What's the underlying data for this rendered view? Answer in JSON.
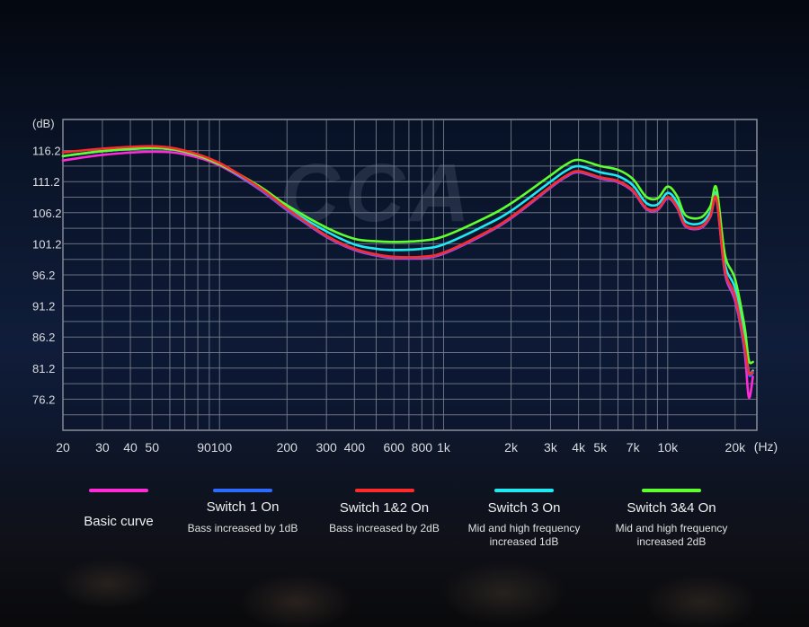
{
  "chart_data": {
    "type": "line",
    "y_unit": "(dB)",
    "x_unit": "(Hz)",
    "xscale": "log",
    "xlim": [
      20,
      25000
    ],
    "ylim": [
      71.2,
      121.2
    ],
    "y_ticks": [
      116.2,
      111.2,
      106.2,
      101.2,
      96.2,
      91.2,
      86.2,
      81.2,
      76.2
    ],
    "y_tick_labels": [
      "116.2",
      "111.2",
      "106.2",
      "101.2",
      "96.2",
      "91.2",
      "86.2",
      "81.2",
      "76.2"
    ],
    "x_tick_labels": [
      {
        "v": 20,
        "t": "20"
      },
      {
        "v": 30,
        "t": "30"
      },
      {
        "v": 40,
        "t": "40"
      },
      {
        "v": 50,
        "t": "50"
      },
      {
        "v": 95,
        "t": "90100"
      },
      {
        "v": 200,
        "t": "200"
      },
      {
        "v": 300,
        "t": "300"
      },
      {
        "v": 400,
        "t": "400"
      },
      {
        "v": 600,
        "t": "600"
      },
      {
        "v": 800,
        "t": "800"
      },
      {
        "v": 1000,
        "t": "1k"
      },
      {
        "v": 2000,
        "t": "2k"
      },
      {
        "v": 3000,
        "t": "3k"
      },
      {
        "v": 4000,
        "t": "4k"
      },
      {
        "v": 5000,
        "t": "5k"
      },
      {
        "v": 7000,
        "t": "7k"
      },
      {
        "v": 10000,
        "t": "10k"
      },
      {
        "v": 20000,
        "t": "20k"
      }
    ],
    "grid_x": [
      20,
      30,
      40,
      50,
      60,
      70,
      80,
      90,
      100,
      200,
      300,
      400,
      500,
      600,
      700,
      800,
      900,
      1000,
      2000,
      3000,
      4000,
      5000,
      6000,
      7000,
      8000,
      9000,
      10000,
      20000
    ],
    "grid": true,
    "watermark": "CCA",
    "series": [
      {
        "name": "Basic curve",
        "color": "#ff2bd6",
        "x": [
          20,
          30,
          50,
          70,
          100,
          150,
          200,
          300,
          400,
          500,
          600,
          800,
          1000,
          1500,
          2000,
          3000,
          3500,
          4000,
          5000,
          6000,
          7000,
          8000,
          9000,
          10000,
          11000,
          12000,
          14000,
          15500,
          16500,
          18000,
          20000,
          22000,
          23000,
          24000
        ],
        "y": [
          114.6,
          115.5,
          116.0,
          115.6,
          113.8,
          110.0,
          106.6,
          102.3,
          100.2,
          99.3,
          98.9,
          98.9,
          99.6,
          102.6,
          105.3,
          110.2,
          111.9,
          112.7,
          111.7,
          111.1,
          109.6,
          106.8,
          106.6,
          108.5,
          107.0,
          104.0,
          103.7,
          105.5,
          108.3,
          96.5,
          92.0,
          84.0,
          76.5,
          79.8
        ]
      },
      {
        "name": "Switch 1 On",
        "color": "#2b6bff",
        "x": [
          20,
          30,
          50,
          70,
          100,
          150,
          200,
          300,
          400,
          500,
          600,
          800,
          1000,
          1500,
          2000,
          3000,
          3500,
          4000,
          5000,
          6000,
          7000,
          8000,
          9000,
          10000,
          11000,
          12000,
          14000,
          15500,
          16500,
          18000,
          20000,
          22000,
          23000,
          24000
        ],
        "y": [
          115.3,
          116.1,
          116.6,
          116.0,
          114.0,
          110.1,
          106.7,
          102.4,
          100.3,
          99.4,
          99.0,
          99.0,
          99.7,
          102.7,
          105.4,
          110.3,
          112.0,
          112.8,
          111.8,
          111.2,
          109.7,
          106.9,
          106.7,
          108.6,
          107.1,
          104.1,
          103.8,
          105.6,
          108.4,
          96.8,
          92.5,
          84.5,
          80.2,
          80.4
        ]
      },
      {
        "name": "Switch 1&2 On",
        "color": "#ff2b2b",
        "x": [
          20,
          30,
          50,
          70,
          100,
          150,
          200,
          300,
          400,
          500,
          600,
          800,
          1000,
          1500,
          2000,
          3000,
          3500,
          4000,
          5000,
          6000,
          7000,
          8000,
          9000,
          10000,
          11000,
          12000,
          14000,
          15500,
          16500,
          18000,
          20000,
          22000,
          23000,
          24000
        ],
        "y": [
          115.9,
          116.5,
          116.9,
          116.2,
          114.2,
          110.3,
          106.9,
          102.5,
          100.4,
          99.5,
          99.1,
          99.1,
          99.8,
          102.8,
          105.5,
          110.4,
          112.1,
          112.9,
          111.9,
          111.3,
          109.8,
          107.0,
          106.8,
          108.7,
          107.2,
          104.2,
          103.9,
          105.7,
          108.5,
          97.0,
          92.8,
          85.0,
          80.5,
          80.6
        ]
      },
      {
        "name": "Switch 3 On",
        "color": "#1fe9f2",
        "x": [
          20,
          30,
          50,
          70,
          100,
          150,
          200,
          300,
          400,
          500,
          600,
          800,
          1000,
          1500,
          2000,
          3000,
          3500,
          4000,
          5000,
          6000,
          7000,
          8000,
          9000,
          10000,
          11000,
          12000,
          14000,
          15500,
          16500,
          18000,
          20000,
          22000,
          23000,
          24000
        ],
        "y": [
          115.3,
          116.1,
          116.6,
          116.0,
          114.0,
          110.3,
          107.0,
          103.2,
          101.1,
          100.4,
          100.2,
          100.4,
          101.1,
          104.0,
          106.5,
          111.2,
          112.9,
          113.7,
          112.7,
          112.1,
          110.6,
          107.8,
          107.5,
          109.4,
          107.9,
          104.8,
          104.5,
          106.3,
          109.2,
          98.0,
          94.0,
          86.0,
          80.6,
          80.8
        ]
      },
      {
        "name": "Switch 3&4 On",
        "color": "#5dff2e",
        "x": [
          20,
          30,
          50,
          70,
          100,
          150,
          200,
          300,
          400,
          500,
          600,
          800,
          1000,
          1500,
          2000,
          3000,
          3500,
          4000,
          5000,
          6000,
          7000,
          8000,
          9000,
          10000,
          11000,
          12000,
          14000,
          15500,
          16500,
          18000,
          20000,
          22000,
          23000,
          24000
        ],
        "y": [
          115.3,
          116.1,
          116.6,
          116.0,
          114.0,
          110.5,
          107.4,
          103.8,
          102.0,
          101.6,
          101.5,
          101.7,
          102.4,
          105.2,
          107.7,
          112.2,
          113.9,
          114.7,
          113.7,
          113.1,
          111.6,
          108.8,
          108.5,
          110.4,
          108.9,
          105.8,
          105.4,
          107.2,
          110.2,
          99.5,
          95.5,
          88.0,
          82.5,
          82.2
        ]
      }
    ]
  },
  "legend": [
    {
      "color": "#ff2bd6",
      "title": "Basic curve",
      "desc": ""
    },
    {
      "color": "#2b6bff",
      "title": "Switch 1 On",
      "desc": "Bass increased by 1dB"
    },
    {
      "color": "#ff2b2b",
      "title": "Switch 1&2 On",
      "desc": "Bass increased by 2dB"
    },
    {
      "color": "#1fe9f2",
      "title": "Switch 3 On",
      "desc": "Mid and high frequency increased 1dB"
    },
    {
      "color": "#5dff2e",
      "title": "Switch 3&4 On",
      "desc": "Mid and high frequency increased 2dB"
    }
  ]
}
